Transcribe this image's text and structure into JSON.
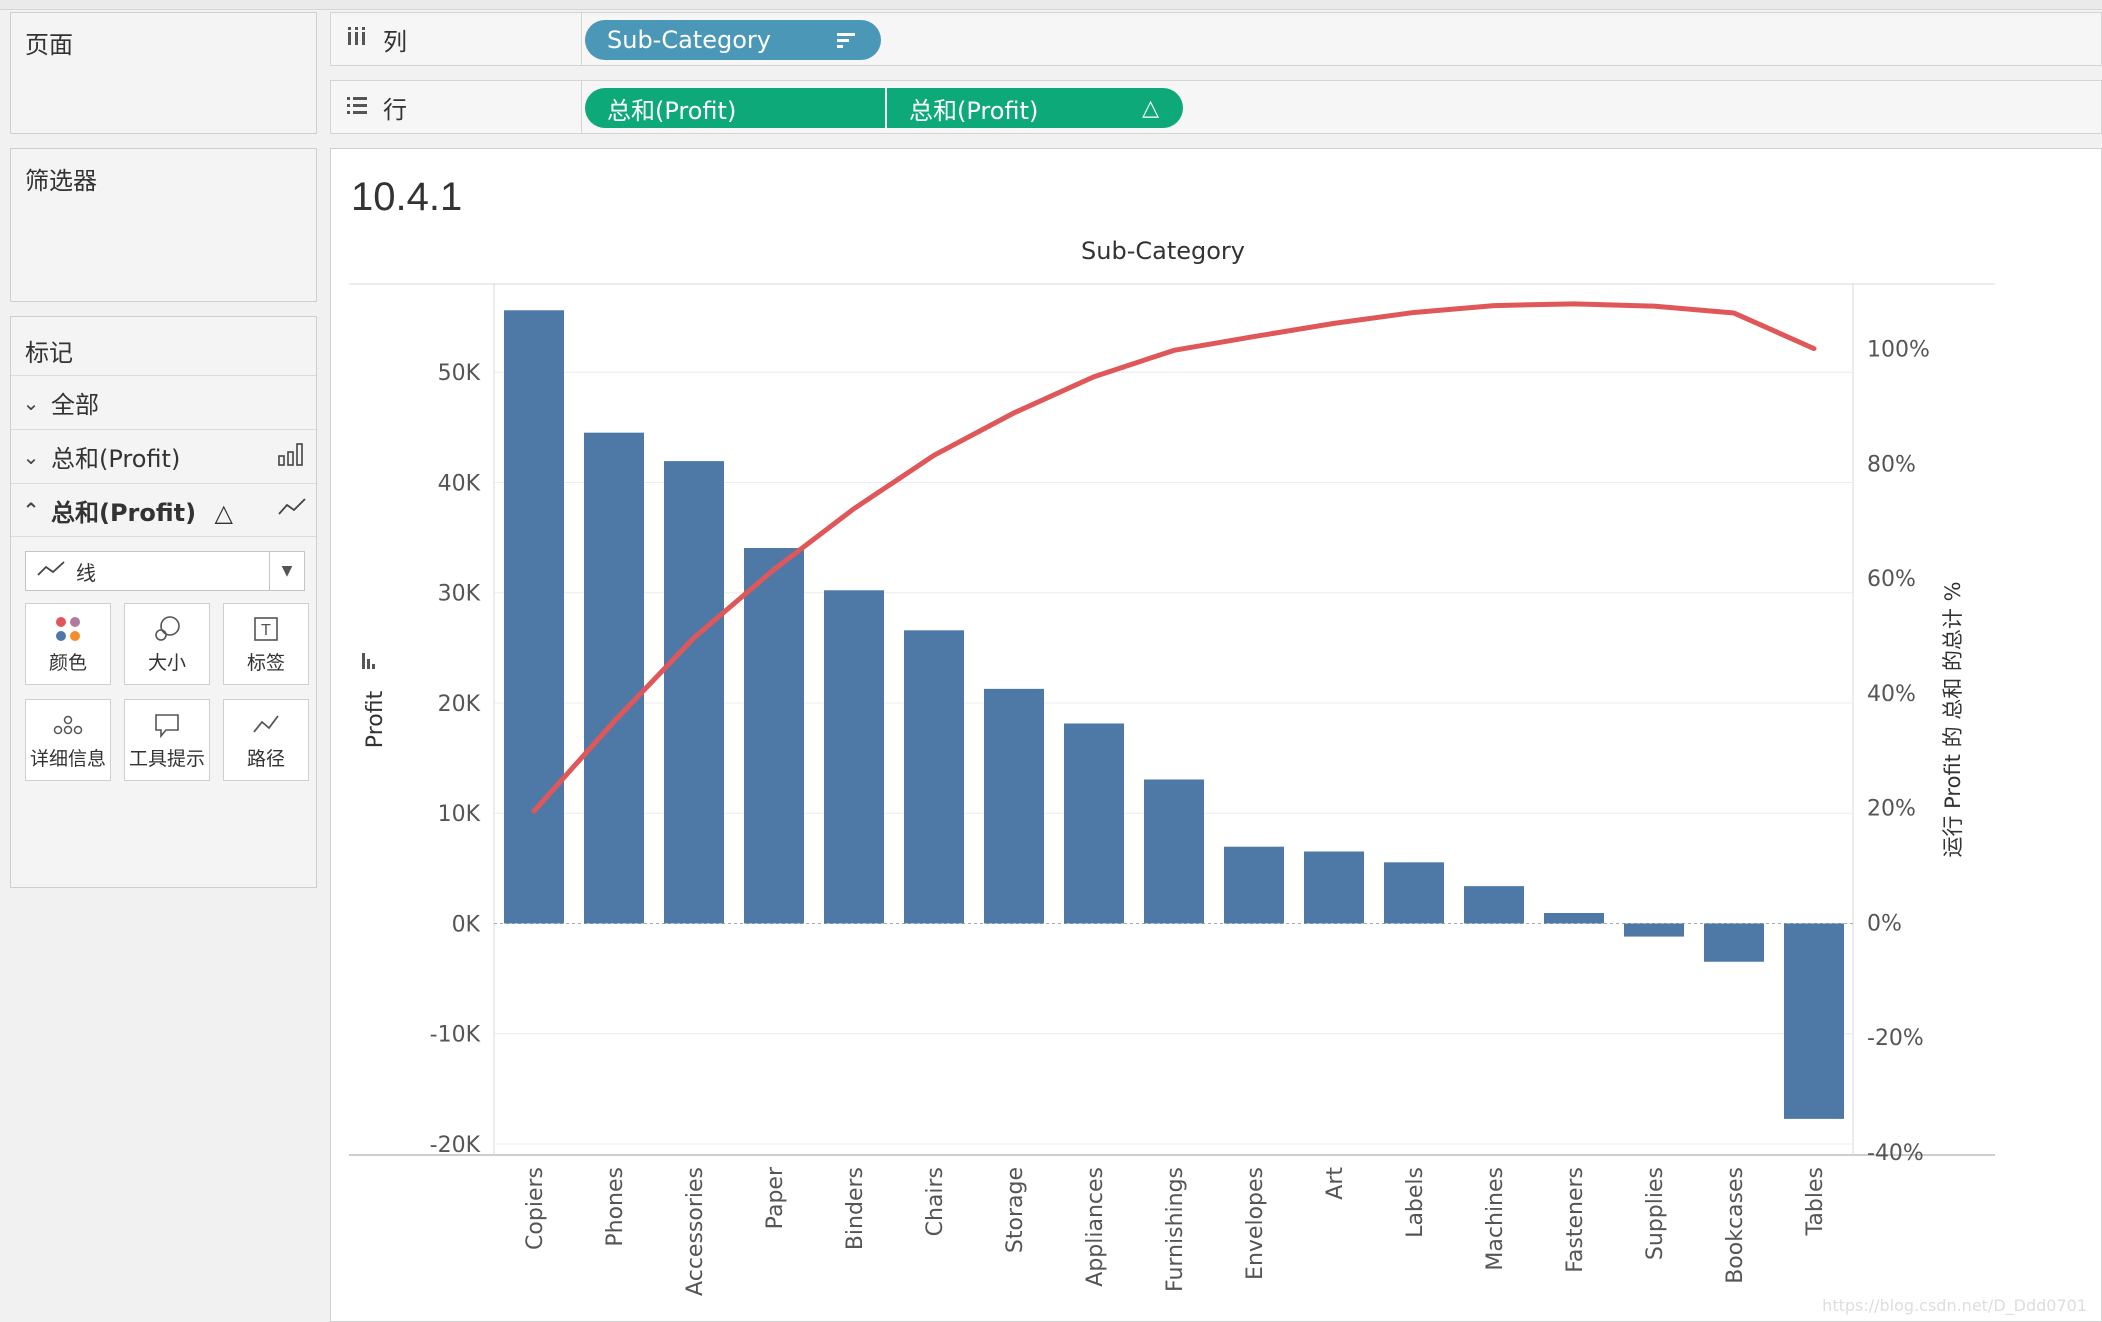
{
  "left_panel": {
    "pages_label": "页面",
    "filters_label": "筛选器",
    "marks": {
      "title": "标记",
      "rows": [
        {
          "chevron": "v",
          "label": "全部"
        },
        {
          "chevron": "v",
          "label": "总和(Profit)",
          "icon": "bar-chart-icon"
        },
        {
          "chevron": "^",
          "label": "总和(Profit)",
          "delta": "△",
          "icon": "line-chart-icon"
        }
      ],
      "mark_type": "线",
      "buttons": [
        {
          "label": "颜色",
          "icon": "color-dots-icon"
        },
        {
          "label": "大小",
          "icon": "size-icon"
        },
        {
          "label": "标签",
          "icon": "label-icon"
        },
        {
          "label": "详细信息",
          "icon": "detail-icon"
        },
        {
          "label": "工具提示",
          "icon": "tooltip-icon"
        },
        {
          "label": "路径",
          "icon": "path-icon"
        }
      ]
    }
  },
  "shelves": {
    "columns": {
      "label": "列",
      "pill": "Sub-Category"
    },
    "rows": {
      "label": "行",
      "pills": [
        "总和(Profit)",
        "总和(Profit)"
      ],
      "delta": "△"
    }
  },
  "sheet": {
    "title": "10.4.1",
    "header": "Sub-Category",
    "watermark": "https://blog.csdn.net/D_Ddd0701"
  },
  "colors": {
    "bar": "#4e79a7",
    "line": "#e05759",
    "pill_blue": "#4b97b7",
    "pill_green": "#0ea979"
  },
  "chart_data": {
    "type": "bar",
    "title": "10.4.1",
    "xlabel": "Sub-Category",
    "ylabel": "Profit",
    "y2label": "运行 Profit 的 总和 的总计 %",
    "categories": [
      "Copiers",
      "Phones",
      "Accessories",
      "Paper",
      "Binders",
      "Chairs",
      "Storage",
      "Appliances",
      "Furnishings",
      "Envelopes",
      "Art",
      "Labels",
      "Machines",
      "Fasteners",
      "Supplies",
      "Bookcases",
      "Tables"
    ],
    "series": [
      {
        "name": "总和(Profit)",
        "type": "bar",
        "axis": "left",
        "values": [
          55618,
          44516,
          41937,
          34054,
          30222,
          26590,
          21279,
          18138,
          13059,
          6964,
          6528,
          5546,
          3385,
          950,
          -1189,
          -3473,
          -17725
        ]
      },
      {
        "name": "总和(Profit) △",
        "type": "line",
        "axis": "right",
        "values": [
          19.4,
          35.0,
          49.6,
          61.5,
          72.1,
          81.4,
          88.8,
          95.1,
          99.7,
          102.1,
          104.4,
          106.3,
          107.5,
          107.8,
          107.4,
          106.2,
          100.0
        ]
      }
    ],
    "y_ticks": [
      "-20K",
      "-10K",
      "0K",
      "10K",
      "20K",
      "30K",
      "40K",
      "50K"
    ],
    "y_tick_values": [
      -20000,
      -10000,
      0,
      10000,
      20000,
      30000,
      40000,
      50000
    ],
    "y2_ticks": [
      "-40%",
      "-20%",
      "0%",
      "20%",
      "40%",
      "60%",
      "80%",
      "100%"
    ],
    "y2_tick_values": [
      -40,
      -20,
      0,
      20,
      40,
      60,
      80,
      100
    ],
    "ylim": [
      -21000,
      58000
    ],
    "y2lim": [
      -40.55,
      111.26
    ],
    "grid": true,
    "legend": "none"
  }
}
